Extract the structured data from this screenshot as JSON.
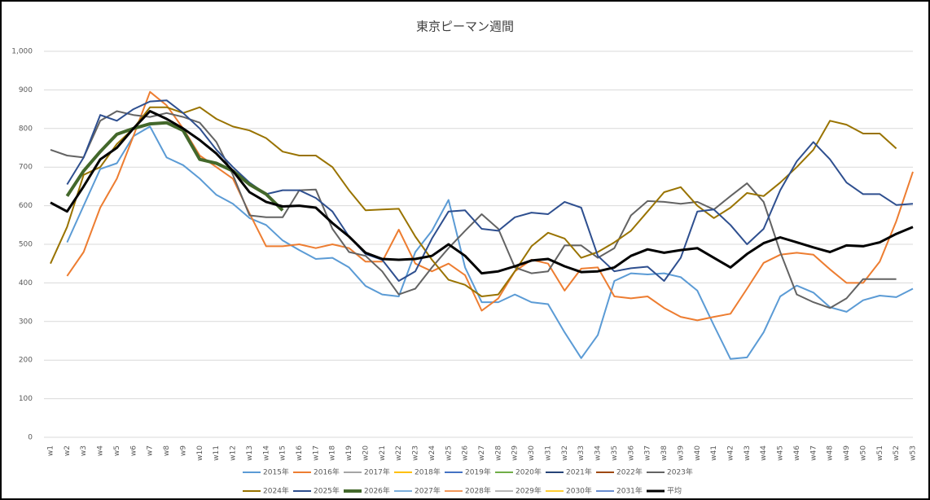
{
  "chart_data": {
    "type": "line",
    "title": "東京ピーマン週間",
    "categories": [
      "w1",
      "w2",
      "w3",
      "w4",
      "w5",
      "w6",
      "w7",
      "w8",
      "w9",
      "w10",
      "w11",
      "w12",
      "w13",
      "w14",
      "w15",
      "w16",
      "w17",
      "w18",
      "w19",
      "w20",
      "w21",
      "w22",
      "w23",
      "w24",
      "w25",
      "w26",
      "w27",
      "w28",
      "w29",
      "w30",
      "w31",
      "w32",
      "w33",
      "w34",
      "w35",
      "w36",
      "w37",
      "w38",
      "w39",
      "w40",
      "w41",
      "w42",
      "w43",
      "w44",
      "w45",
      "w46",
      "w47",
      "w48",
      "w49",
      "w50",
      "w51",
      "w52",
      "w53"
    ],
    "ylim": [
      0,
      1000
    ],
    "yticks": [
      0,
      100,
      200,
      300,
      400,
      500,
      600,
      700,
      800,
      900,
      {
        "value": 1000,
        "label": "1,000"
      }
    ],
    "grid": true,
    "series": [
      {
        "name": "2015年",
        "color": "#5b9bd5",
        "width": 2,
        "values": [
          null,
          505,
          600,
          695,
          710,
          780,
          805,
          725,
          705,
          670,
          628,
          605,
          568,
          550,
          510,
          485,
          462,
          465,
          440,
          392,
          370,
          365,
          480,
          535,
          615,
          440,
          350,
          350,
          370,
          350,
          345,
          272,
          205,
          265,
          405,
          425,
          422,
          425,
          415,
          380,
          290,
          203,
          207,
          272,
          365,
          393,
          375,
          337,
          325,
          355,
          367,
          363,
          385
        ]
      },
      {
        "name": "2016年",
        "color": "#ed7d31",
        "width": 2,
        "values": [
          null,
          418,
          480,
          595,
          670,
          780,
          895,
          860,
          800,
          730,
          700,
          670,
          580,
          495,
          495,
          500,
          490,
          500,
          490,
          455,
          455,
          538,
          450,
          430,
          450,
          420,
          328,
          360,
          430,
          460,
          450,
          380,
          437,
          440,
          365,
          360,
          365,
          335,
          312,
          303,
          312,
          320,
          385,
          452,
          473,
          478,
          473,
          435,
          400,
          400,
          455,
          560,
          688
        ]
      },
      {
        "name": "2017年",
        "color": "#a5a5a5",
        "width": 2,
        "values": [
          null,
          null,
          null,
          null,
          null,
          null,
          null,
          null,
          null,
          null,
          null,
          null,
          null,
          null,
          null,
          null,
          null,
          null,
          null,
          null,
          null,
          null,
          null,
          null,
          null,
          null,
          null,
          null,
          null,
          null,
          null,
          null,
          null,
          null,
          null,
          null,
          null,
          null,
          null,
          null,
          null,
          null,
          null,
          null,
          null,
          null,
          null,
          null,
          null,
          null,
          null,
          null,
          null
        ]
      },
      {
        "name": "2018年",
        "color": "#ffc000",
        "width": 2,
        "values": [
          null,
          null,
          null,
          null,
          null,
          null,
          null,
          null,
          null,
          null,
          null,
          null,
          null,
          null,
          null,
          null,
          null,
          null,
          null,
          null,
          null,
          null,
          null,
          null,
          null,
          null,
          null,
          null,
          null,
          null,
          null,
          null,
          null,
          null,
          null,
          null,
          null,
          null,
          null,
          null,
          null,
          null,
          null,
          null,
          null,
          null,
          null,
          null,
          null,
          null,
          null,
          null,
          null
        ]
      },
      {
        "name": "2019年",
        "color": "#4472c4",
        "width": 2,
        "values": [
          null,
          null,
          null,
          null,
          null,
          null,
          null,
          null,
          null,
          null,
          null,
          null,
          null,
          null,
          null,
          null,
          null,
          null,
          null,
          null,
          null,
          null,
          null,
          null,
          null,
          null,
          null,
          null,
          null,
          null,
          null,
          null,
          null,
          null,
          null,
          null,
          null,
          null,
          null,
          null,
          null,
          null,
          null,
          null,
          null,
          null,
          null,
          null,
          null,
          null,
          null,
          null,
          null
        ]
      },
      {
        "name": "2020年",
        "color": "#70ad47",
        "width": 2,
        "values": [
          null,
          null,
          null,
          null,
          null,
          null,
          null,
          null,
          null,
          null,
          null,
          null,
          null,
          null,
          null,
          null,
          null,
          null,
          null,
          null,
          null,
          null,
          null,
          null,
          null,
          null,
          null,
          null,
          null,
          null,
          null,
          null,
          null,
          null,
          null,
          null,
          null,
          null,
          null,
          null,
          null,
          null,
          null,
          null,
          null,
          null,
          null,
          null,
          null,
          null,
          null,
          null,
          null
        ]
      },
      {
        "name": "2021年",
        "color": "#264478",
        "width": 2,
        "values": [
          null,
          null,
          null,
          null,
          null,
          null,
          null,
          null,
          null,
          null,
          null,
          null,
          null,
          null,
          null,
          null,
          null,
          null,
          null,
          null,
          null,
          null,
          null,
          null,
          null,
          null,
          null,
          null,
          null,
          null,
          null,
          null,
          null,
          null,
          null,
          null,
          null,
          null,
          null,
          null,
          null,
          null,
          null,
          null,
          null,
          null,
          null,
          null,
          null,
          null,
          null,
          null,
          null
        ]
      },
      {
        "name": "2022年",
        "color": "#9e480e",
        "width": 2,
        "values": [
          null,
          null,
          null,
          null,
          null,
          null,
          null,
          null,
          null,
          null,
          null,
          null,
          null,
          null,
          null,
          null,
          null,
          null,
          null,
          null,
          null,
          null,
          null,
          null,
          null,
          null,
          null,
          null,
          null,
          null,
          null,
          null,
          null,
          null,
          null,
          null,
          null,
          null,
          null,
          null,
          null,
          null,
          null,
          null,
          null,
          null,
          null,
          null,
          null,
          null,
          null,
          null,
          null
        ]
      },
      {
        "name": "2023年",
        "color": "#636363",
        "width": 2,
        "values": [
          745,
          730,
          725,
          820,
          845,
          835,
          830,
          840,
          830,
          815,
          765,
          680,
          575,
          570,
          570,
          640,
          642,
          540,
          480,
          470,
          430,
          370,
          385,
          440,
          490,
          535,
          578,
          540,
          440,
          425,
          430,
          497,
          497,
          465,
          490,
          575,
          612,
          610,
          605,
          610,
          590,
          625,
          658,
          610,
          480,
          370,
          350,
          335,
          360,
          410,
          410,
          410,
          null
        ]
      },
      {
        "name": "2024年",
        "color": "#997300",
        "width": 2,
        "values": [
          450,
          545,
          680,
          700,
          760,
          800,
          855,
          855,
          840,
          855,
          825,
          805,
          795,
          775,
          740,
          730,
          730,
          700,
          640,
          588,
          590,
          592,
          520,
          460,
          408,
          395,
          365,
          370,
          430,
          495,
          530,
          515,
          465,
          480,
          505,
          535,
          585,
          635,
          648,
          600,
          568,
          595,
          633,
          625,
          660,
          700,
          745,
          820,
          810,
          787,
          787,
          748,
          null
        ]
      },
      {
        "name": "2025年",
        "color": "#2e4f8f",
        "width": 2,
        "values": [
          null,
          655,
          725,
          835,
          820,
          850,
          870,
          873,
          840,
          800,
          745,
          700,
          660,
          630,
          640,
          640,
          620,
          585,
          520,
          475,
          460,
          405,
          430,
          515,
          585,
          588,
          540,
          535,
          570,
          582,
          578,
          610,
          595,
          470,
          430,
          438,
          442,
          405,
          465,
          585,
          590,
          550,
          500,
          540,
          640,
          715,
          765,
          720,
          660,
          630,
          630,
          602,
          605
        ]
      },
      {
        "name": "2026年",
        "color": "#43682b",
        "width": 4,
        "values": [
          null,
          625,
          690,
          740,
          785,
          800,
          812,
          815,
          795,
          720,
          710,
          690,
          655,
          630,
          588,
          null,
          null,
          null,
          null,
          null,
          null,
          null,
          null,
          null,
          null,
          null,
          null,
          null,
          null,
          null,
          null,
          null,
          null,
          null,
          null,
          null,
          null,
          null,
          null,
          null,
          null,
          null,
          null,
          null,
          null,
          null,
          null,
          null,
          null,
          null,
          null,
          null,
          null
        ]
      },
      {
        "name": "2027年",
        "color": "#7cafdd",
        "width": 2,
        "values": [
          null,
          null,
          null,
          null,
          null,
          null,
          null,
          null,
          null,
          null,
          null,
          null,
          null,
          null,
          null,
          null,
          null,
          null,
          null,
          null,
          null,
          null,
          null,
          null,
          null,
          null,
          null,
          null,
          null,
          null,
          null,
          null,
          null,
          null,
          null,
          null,
          null,
          null,
          null,
          null,
          null,
          null,
          null,
          null,
          null,
          null,
          null,
          null,
          null,
          null,
          null,
          null,
          null
        ]
      },
      {
        "name": "2028年",
        "color": "#f1975a",
        "width": 2,
        "values": [
          null,
          null,
          null,
          null,
          null,
          null,
          null,
          null,
          null,
          null,
          null,
          null,
          null,
          null,
          null,
          null,
          null,
          null,
          null,
          null,
          null,
          null,
          null,
          null,
          null,
          null,
          null,
          null,
          null,
          null,
          null,
          null,
          null,
          null,
          null,
          null,
          null,
          null,
          null,
          null,
          null,
          null,
          null,
          null,
          null,
          null,
          null,
          null,
          null,
          null,
          null,
          null,
          null
        ]
      },
      {
        "name": "2029年",
        "color": "#b7b7b7",
        "width": 2,
        "values": [
          null,
          null,
          null,
          null,
          null,
          null,
          null,
          null,
          null,
          null,
          null,
          null,
          null,
          null,
          null,
          null,
          null,
          null,
          null,
          null,
          null,
          null,
          null,
          null,
          null,
          null,
          null,
          null,
          null,
          null,
          null,
          null,
          null,
          null,
          null,
          null,
          null,
          null,
          null,
          null,
          null,
          null,
          null,
          null,
          null,
          null,
          null,
          null,
          null,
          null,
          null,
          null,
          null
        ]
      },
      {
        "name": "2030年",
        "color": "#ffcd33",
        "width": 2,
        "values": [
          null,
          null,
          null,
          null,
          null,
          null,
          null,
          null,
          null,
          null,
          null,
          null,
          null,
          null,
          null,
          null,
          null,
          null,
          null,
          null,
          null,
          null,
          null,
          null,
          null,
          null,
          null,
          null,
          null,
          null,
          null,
          null,
          null,
          null,
          null,
          null,
          null,
          null,
          null,
          null,
          null,
          null,
          null,
          null,
          null,
          null,
          null,
          null,
          null,
          null,
          null,
          null,
          null
        ]
      },
      {
        "name": "2031年",
        "color": "#698ed0",
        "width": 2,
        "values": [
          null,
          null,
          null,
          null,
          null,
          null,
          null,
          null,
          null,
          null,
          null,
          null,
          null,
          null,
          null,
          null,
          null,
          null,
          null,
          null,
          null,
          null,
          null,
          null,
          null,
          null,
          null,
          null,
          null,
          null,
          null,
          null,
          null,
          null,
          null,
          null,
          null,
          null,
          null,
          null,
          null,
          null,
          null,
          null,
          null,
          null,
          null,
          null,
          null,
          null,
          null,
          null,
          null
        ]
      },
      {
        "name": "平均",
        "color": "#000000",
        "width": 3,
        "values": [
          608,
          585,
          650,
          720,
          750,
          800,
          845,
          825,
          800,
          770,
          735,
          690,
          635,
          610,
          598,
          600,
          595,
          555,
          520,
          478,
          462,
          460,
          462,
          470,
          500,
          470,
          425,
          430,
          443,
          458,
          462,
          443,
          428,
          430,
          440,
          470,
          487,
          478,
          485,
          490,
          465,
          440,
          475,
          503,
          518,
          505,
          492,
          480,
          497,
          495,
          505,
          527,
          545
        ]
      }
    ]
  }
}
